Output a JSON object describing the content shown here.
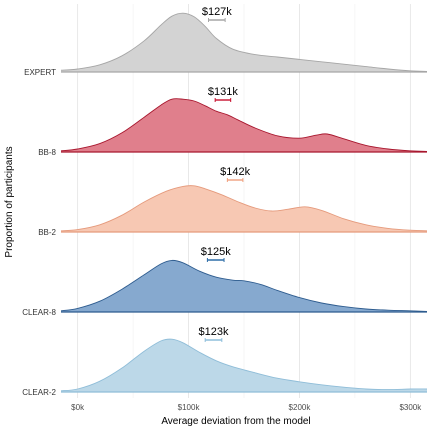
{
  "chart_data": {
    "type": "ridgeline",
    "xlabel": "Average deviation from the model",
    "ylabel": "Proportion of participants",
    "x_ticks": [
      {
        "value": 0,
        "label": "$0k"
      },
      {
        "value": 100,
        "label": "$100k"
      },
      {
        "value": 200,
        "label": "$200k"
      },
      {
        "value": 300,
        "label": "$300k"
      }
    ],
    "xlim": [
      -15,
      315
    ],
    "x_units": "thousands of dollars",
    "grid": true,
    "series": [
      {
        "name": "EXPERT",
        "mean_label": "$127k",
        "mean_interval": [
          118,
          133
        ],
        "fill": "#d3d3d3",
        "line": "#a6a6a6",
        "interval_color": "#a6a6a6",
        "density": [
          [
            -15,
            0.03
          ],
          [
            0,
            0.05
          ],
          [
            20,
            0.12
          ],
          [
            40,
            0.27
          ],
          [
            60,
            0.52
          ],
          [
            75,
            0.78
          ],
          [
            85,
            0.93
          ],
          [
            95,
            0.98
          ],
          [
            105,
            0.92
          ],
          [
            115,
            0.76
          ],
          [
            125,
            0.56
          ],
          [
            140,
            0.38
          ],
          [
            160,
            0.29
          ],
          [
            180,
            0.25
          ],
          [
            200,
            0.21
          ],
          [
            220,
            0.17
          ],
          [
            240,
            0.13
          ],
          [
            260,
            0.09
          ],
          [
            280,
            0.05
          ],
          [
            300,
            0.02
          ],
          [
            315,
            0.01
          ]
        ]
      },
      {
        "name": "BB-8",
        "mean_label": "$131k",
        "mean_interval": [
          124,
          138
        ],
        "fill": "#e07f8c",
        "line": "#a8172e",
        "interval_color": "#c8102e",
        "density": [
          [
            -15,
            0.02
          ],
          [
            0,
            0.05
          ],
          [
            20,
            0.14
          ],
          [
            40,
            0.32
          ],
          [
            60,
            0.58
          ],
          [
            75,
            0.78
          ],
          [
            85,
            0.88
          ],
          [
            95,
            0.88
          ],
          [
            105,
            0.85
          ],
          [
            115,
            0.77
          ],
          [
            125,
            0.68
          ],
          [
            135,
            0.62
          ],
          [
            145,
            0.53
          ],
          [
            160,
            0.4
          ],
          [
            180,
            0.27
          ],
          [
            200,
            0.23
          ],
          [
            215,
            0.28
          ],
          [
            225,
            0.3
          ],
          [
            240,
            0.22
          ],
          [
            260,
            0.11
          ],
          [
            280,
            0.05
          ],
          [
            300,
            0.02
          ],
          [
            315,
            0.01
          ]
        ]
      },
      {
        "name": "BB-2",
        "mean_label": "$142k",
        "mean_interval": [
          135,
          149
        ],
        "fill": "#f7c8b3",
        "line": "#e59a7c",
        "interval_color": "#f0a07e",
        "density": [
          [
            -15,
            0.02
          ],
          [
            0,
            0.04
          ],
          [
            20,
            0.12
          ],
          [
            40,
            0.28
          ],
          [
            60,
            0.5
          ],
          [
            80,
            0.68
          ],
          [
            95,
            0.76
          ],
          [
            105,
            0.77
          ],
          [
            115,
            0.72
          ],
          [
            130,
            0.62
          ],
          [
            145,
            0.5
          ],
          [
            160,
            0.4
          ],
          [
            175,
            0.35
          ],
          [
            190,
            0.38
          ],
          [
            205,
            0.42
          ],
          [
            220,
            0.36
          ],
          [
            240,
            0.22
          ],
          [
            260,
            0.12
          ],
          [
            280,
            0.06
          ],
          [
            300,
            0.03
          ],
          [
            315,
            0.02
          ]
        ]
      },
      {
        "name": "CLEAR-8",
        "mean_label": "$125k",
        "mean_interval": [
          117,
          132
        ],
        "fill": "#86a9cf",
        "line": "#2e5c8f",
        "interval_color": "#2f6ea8",
        "density": [
          [
            -15,
            0.02
          ],
          [
            0,
            0.06
          ],
          [
            20,
            0.18
          ],
          [
            40,
            0.38
          ],
          [
            60,
            0.62
          ],
          [
            75,
            0.8
          ],
          [
            85,
            0.86
          ],
          [
            95,
            0.82
          ],
          [
            110,
            0.68
          ],
          [
            125,
            0.58
          ],
          [
            140,
            0.53
          ],
          [
            150,
            0.52
          ],
          [
            165,
            0.46
          ],
          [
            180,
            0.36
          ],
          [
            200,
            0.24
          ],
          [
            220,
            0.15
          ],
          [
            240,
            0.09
          ],
          [
            260,
            0.05
          ],
          [
            280,
            0.03
          ],
          [
            300,
            0.02
          ],
          [
            315,
            0.01
          ]
        ]
      },
      {
        "name": "CLEAR-2",
        "mean_label": "$123k",
        "mean_interval": [
          115,
          130
        ],
        "fill": "#bcd8e8",
        "line": "#8fbdd8",
        "interval_color": "#8fbfdc",
        "density": [
          [
            -15,
            0.02
          ],
          [
            0,
            0.05
          ],
          [
            20,
            0.18
          ],
          [
            40,
            0.4
          ],
          [
            60,
            0.68
          ],
          [
            75,
            0.85
          ],
          [
            85,
            0.88
          ],
          [
            95,
            0.82
          ],
          [
            110,
            0.66
          ],
          [
            125,
            0.52
          ],
          [
            140,
            0.42
          ],
          [
            160,
            0.32
          ],
          [
            180,
            0.23
          ],
          [
            200,
            0.17
          ],
          [
            220,
            0.12
          ],
          [
            240,
            0.08
          ],
          [
            260,
            0.05
          ],
          [
            280,
            0.04
          ],
          [
            300,
            0.05
          ],
          [
            315,
            0.05
          ]
        ]
      }
    ]
  }
}
